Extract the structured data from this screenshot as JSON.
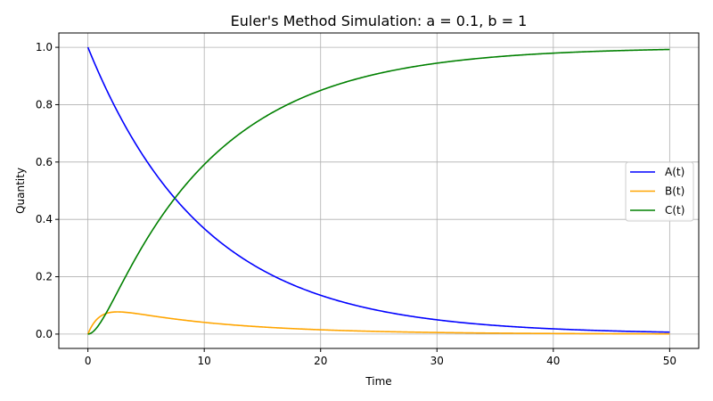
{
  "chart_data": {
    "type": "line",
    "title": "Euler's Method Simulation: a = 0.1, b = 1",
    "xlabel": "Time",
    "ylabel": "Quantity",
    "xlim": [
      -2.5,
      52.5
    ],
    "ylim": [
      -0.05,
      1.05
    ],
    "xticks": [
      0,
      10,
      20,
      30,
      40,
      50
    ],
    "yticks": [
      0.0,
      0.2,
      0.4,
      0.6,
      0.8,
      1.0
    ],
    "xtick_labels": [
      "0",
      "10",
      "20",
      "30",
      "40",
      "50"
    ],
    "ytick_labels": [
      "0.0",
      "0.2",
      "0.4",
      "0.6",
      "0.8",
      "1.0"
    ],
    "grid": true,
    "legend_position": "center-right",
    "params": {
      "a": 0.1,
      "b": 1,
      "t_end": 50
    },
    "series": [
      {
        "name": "A(t)",
        "color": "#0000ff"
      },
      {
        "name": "B(t)",
        "color": "#ffa500"
      },
      {
        "name": "C(t)",
        "color": "#008000"
      }
    ]
  }
}
